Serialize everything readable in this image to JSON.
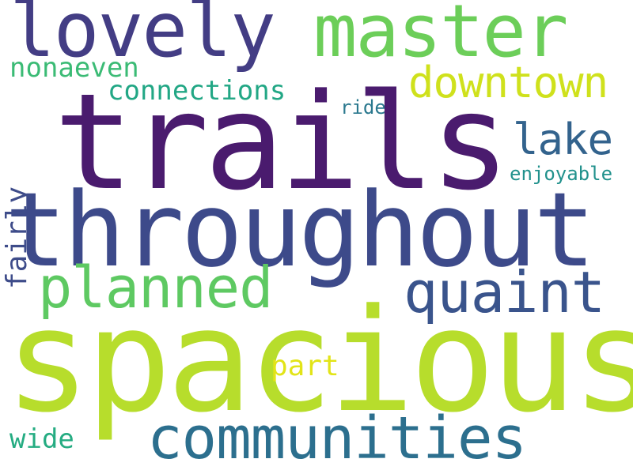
{
  "wordcloud": {
    "words": {
      "trails": {
        "text": "trails",
        "color": "#4a1b6e"
      },
      "throughout": {
        "text": "throughout",
        "color": "#3d4a8a"
      },
      "spacious": {
        "text": "spacious",
        "color": "#b7dd2c"
      },
      "lovely": {
        "text": "lovely",
        "color": "#433d84"
      },
      "master": {
        "text": "master",
        "color": "#6cce59"
      },
      "downtown": {
        "text": "downtown",
        "color": "#cfe11c"
      },
      "nonaeven": {
        "text": "nonaeven",
        "color": "#3bbb75"
      },
      "connections": {
        "text": "connections",
        "color": "#22a785"
      },
      "lake": {
        "text": "lake",
        "color": "#33638d"
      },
      "ride": {
        "text": "ride",
        "color": "#2a788e"
      },
      "enjoyable": {
        "text": "enjoyable",
        "color": "#21918c"
      },
      "planned": {
        "text": "planned",
        "color": "#5ec962"
      },
      "quaint": {
        "text": "quaint",
        "color": "#3a548c"
      },
      "part": {
        "text": "part",
        "color": "#e2e418"
      },
      "communities": {
        "text": "communities",
        "color": "#2c6f8e"
      },
      "wide": {
        "text": "wide",
        "color": "#25ac82"
      },
      "fairly": {
        "text": "fairly",
        "color": "#3e4c8a"
      }
    }
  }
}
